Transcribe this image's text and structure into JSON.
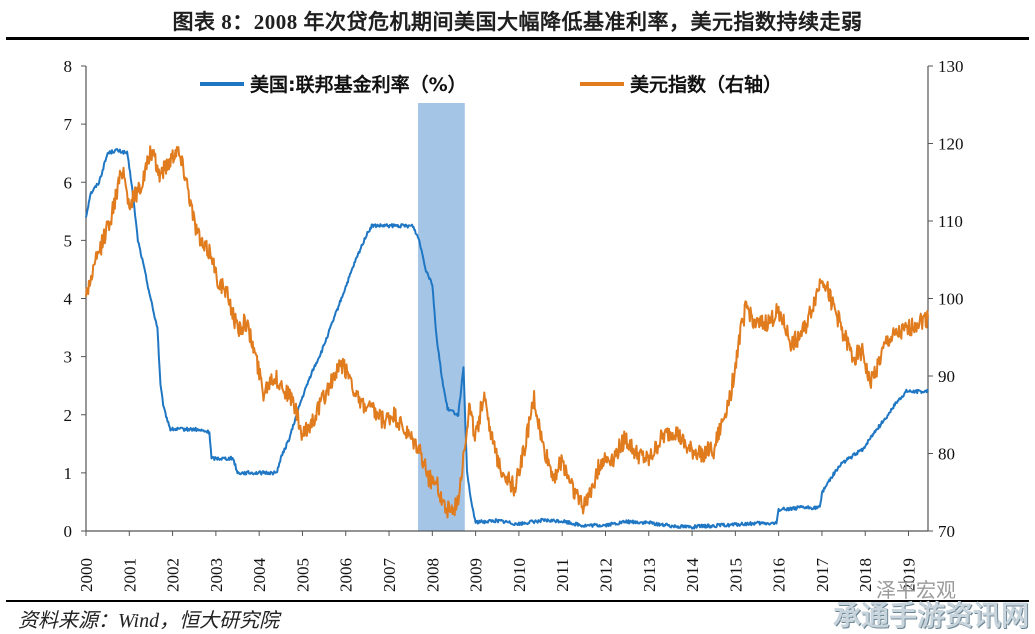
{
  "title": "图表 8：2008 年次贷危机期间美国大幅降低基准利率，美元指数持续走弱",
  "source": "资料来源：Wind，恒大研究院",
  "watermark_account": "泽平宏观",
  "watermark_site": "承通手游资讯网",
  "chart_data": {
    "type": "line",
    "title": "图表 8：2008 年次贷危机期间美国大幅降低基准利率，美元指数持续走弱",
    "x_axis": {
      "ticks": [
        "2000",
        "2001",
        "2002",
        "2003",
        "2004",
        "2005",
        "2006",
        "2007",
        "2008",
        "2009",
        "2010",
        "2011",
        "2012",
        "2013",
        "2014",
        "2015",
        "2016",
        "2017",
        "2018",
        "2019"
      ],
      "range": [
        2000.0,
        2019.45
      ]
    },
    "y_left": {
      "range": [
        0,
        8
      ],
      "ticks": [
        "0",
        "1",
        "2",
        "3",
        "4",
        "5",
        "6",
        "7",
        "8"
      ]
    },
    "y_right": {
      "range": [
        70,
        130
      ],
      "ticks": [
        "70",
        "80",
        "90",
        "100",
        "110",
        "120",
        "130"
      ]
    },
    "grid": false,
    "legend_position": "top",
    "shaded_period": {
      "start": 2007.67,
      "end": 2008.75
    },
    "series": [
      {
        "name": "美国:联邦基金利率（%）",
        "axis": "left",
        "color": "#1f77c4",
        "points": [
          [
            2000.0,
            5.4
          ],
          [
            2000.1,
            5.8
          ],
          [
            2000.3,
            6.0
          ],
          [
            2000.5,
            6.5
          ],
          [
            2000.7,
            6.55
          ],
          [
            2000.95,
            6.5
          ],
          [
            2001.05,
            6.0
          ],
          [
            2001.2,
            5.0
          ],
          [
            2001.35,
            4.5
          ],
          [
            2001.55,
            3.8
          ],
          [
            2001.65,
            3.5
          ],
          [
            2001.72,
            2.5
          ],
          [
            2001.8,
            2.1
          ],
          [
            2001.95,
            1.75
          ],
          [
            2002.5,
            1.75
          ],
          [
            2002.85,
            1.7
          ],
          [
            2002.9,
            1.25
          ],
          [
            2003.4,
            1.25
          ],
          [
            2003.5,
            1.0
          ],
          [
            2004.4,
            1.0
          ],
          [
            2004.5,
            1.25
          ],
          [
            2004.7,
            1.6
          ],
          [
            2004.95,
            2.2
          ],
          [
            2005.2,
            2.7
          ],
          [
            2005.45,
            3.1
          ],
          [
            2005.7,
            3.6
          ],
          [
            2005.95,
            4.1
          ],
          [
            2006.2,
            4.6
          ],
          [
            2006.45,
            5.05
          ],
          [
            2006.6,
            5.25
          ],
          [
            2007.2,
            5.25
          ],
          [
            2007.55,
            5.25
          ],
          [
            2007.7,
            5.0
          ],
          [
            2007.85,
            4.5
          ],
          [
            2008.0,
            4.25
          ],
          [
            2008.1,
            3.3
          ],
          [
            2008.25,
            2.5
          ],
          [
            2008.35,
            2.1
          ],
          [
            2008.6,
            2.0
          ],
          [
            2008.72,
            2.8
          ],
          [
            2008.8,
            1.0
          ],
          [
            2008.9,
            0.5
          ],
          [
            2009.0,
            0.15
          ],
          [
            2009.5,
            0.18
          ],
          [
            2010.0,
            0.12
          ],
          [
            2010.5,
            0.18
          ],
          [
            2011.0,
            0.17
          ],
          [
            2011.5,
            0.09
          ],
          [
            2012.0,
            0.1
          ],
          [
            2012.5,
            0.16
          ],
          [
            2013.0,
            0.14
          ],
          [
            2013.5,
            0.09
          ],
          [
            2014.0,
            0.07
          ],
          [
            2014.5,
            0.09
          ],
          [
            2015.0,
            0.11
          ],
          [
            2015.5,
            0.13
          ],
          [
            2015.95,
            0.13
          ],
          [
            2016.0,
            0.37
          ],
          [
            2016.5,
            0.4
          ],
          [
            2016.95,
            0.4
          ],
          [
            2017.0,
            0.66
          ],
          [
            2017.2,
            0.91
          ],
          [
            2017.45,
            1.16
          ],
          [
            2017.95,
            1.41
          ],
          [
            2018.2,
            1.69
          ],
          [
            2018.45,
            1.92
          ],
          [
            2018.7,
            2.19
          ],
          [
            2018.95,
            2.4
          ],
          [
            2019.45,
            2.4
          ]
        ]
      },
      {
        "name": "美元指数（右轴）",
        "axis": "right",
        "color": "#e07b1e",
        "points": [
          [
            2000.0,
            100.5
          ],
          [
            2000.3,
            106.0
          ],
          [
            2000.6,
            111.0
          ],
          [
            2000.85,
            117.0
          ],
          [
            2001.0,
            112.0
          ],
          [
            2001.3,
            115.0
          ],
          [
            2001.5,
            119.0
          ],
          [
            2001.7,
            116.0
          ],
          [
            2001.9,
            117.5
          ],
          [
            2002.1,
            119.5
          ],
          [
            2002.3,
            116.0
          ],
          [
            2002.5,
            110.0
          ],
          [
            2002.7,
            106.5
          ],
          [
            2002.9,
            106.0
          ],
          [
            2003.0,
            103.0
          ],
          [
            2003.3,
            100.0
          ],
          [
            2003.5,
            96.0
          ],
          [
            2003.7,
            97.0
          ],
          [
            2003.9,
            93.0
          ],
          [
            2004.1,
            88.0
          ],
          [
            2004.3,
            90.0
          ],
          [
            2004.5,
            89.0
          ],
          [
            2004.8,
            86.5
          ],
          [
            2005.0,
            82.0
          ],
          [
            2005.3,
            85.0
          ],
          [
            2005.6,
            88.5
          ],
          [
            2005.9,
            91.5
          ],
          [
            2006.1,
            90.0
          ],
          [
            2006.3,
            86.5
          ],
          [
            2006.6,
            85.5
          ],
          [
            2006.9,
            84.0
          ],
          [
            2007.1,
            85.0
          ],
          [
            2007.4,
            82.5
          ],
          [
            2007.7,
            80.5
          ],
          [
            2007.9,
            77.0
          ],
          [
            2008.1,
            76.0
          ],
          [
            2008.3,
            73.0
          ],
          [
            2008.5,
            72.5
          ],
          [
            2008.6,
            74.5
          ],
          [
            2008.75,
            81.0
          ],
          [
            2008.85,
            86.0
          ],
          [
            2009.0,
            82.0
          ],
          [
            2009.2,
            88.0
          ],
          [
            2009.4,
            81.0
          ],
          [
            2009.6,
            78.0
          ],
          [
            2009.9,
            75.5
          ],
          [
            2010.1,
            80.0
          ],
          [
            2010.35,
            87.0
          ],
          [
            2010.55,
            81.0
          ],
          [
            2010.8,
            77.0
          ],
          [
            2011.0,
            79.0
          ],
          [
            2011.3,
            75.0
          ],
          [
            2011.5,
            73.0
          ],
          [
            2011.7,
            76.0
          ],
          [
            2011.9,
            79.0
          ],
          [
            2012.2,
            79.5
          ],
          [
            2012.45,
            82.0
          ],
          [
            2012.7,
            80.0
          ],
          [
            2013.0,
            79.0
          ],
          [
            2013.3,
            82.0
          ],
          [
            2013.6,
            83.0
          ],
          [
            2013.9,
            80.5
          ],
          [
            2014.2,
            80.0
          ],
          [
            2014.5,
            80.5
          ],
          [
            2014.7,
            84.0
          ],
          [
            2014.9,
            88.0
          ],
          [
            2015.1,
            95.0
          ],
          [
            2015.25,
            99.0
          ],
          [
            2015.5,
            96.5
          ],
          [
            2015.8,
            97.0
          ],
          [
            2016.0,
            98.5
          ],
          [
            2016.3,
            94.0
          ],
          [
            2016.6,
            96.0
          ],
          [
            2016.9,
            101.0
          ],
          [
            2017.0,
            103.0
          ],
          [
            2017.2,
            100.0
          ],
          [
            2017.5,
            95.5
          ],
          [
            2017.7,
            92.5
          ],
          [
            2017.95,
            93.0
          ],
          [
            2018.1,
            89.0
          ],
          [
            2018.3,
            91.5
          ],
          [
            2018.5,
            94.5
          ],
          [
            2018.8,
            95.5
          ],
          [
            2019.0,
            96.0
          ],
          [
            2019.2,
            97.0
          ],
          [
            2019.45,
            97.5
          ]
        ]
      }
    ]
  }
}
